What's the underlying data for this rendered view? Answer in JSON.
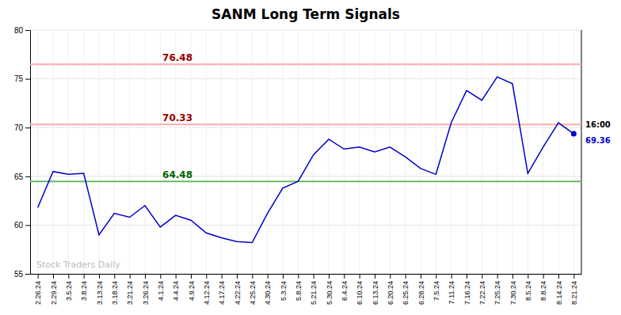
{
  "chart_data": {
    "type": "line",
    "title": "SANM Long Term Signals",
    "categories": [
      "2.26.24",
      "2.29.24",
      "3.5.24",
      "3.8.24",
      "3.13.24",
      "3.18.24",
      "3.21.24",
      "3.26.24",
      "4.1.24",
      "4.4.24",
      "4.9.24",
      "4.12.24",
      "4.17.24",
      "4.22.24",
      "4.25.24",
      "4.30.24",
      "5.3.24",
      "5.8.24",
      "5.21.24",
      "5.30.24",
      "6.4.24",
      "6.10.24",
      "6.13.24",
      "6.20.24",
      "6.25.24",
      "6.28.24",
      "7.5.24",
      "7.11.24",
      "7.16.24",
      "7.22.24",
      "7.25.24",
      "7.30.24",
      "8.5.24",
      "8.8.24",
      "8.14.24",
      "8.21.24"
    ],
    "values": [
      61.8,
      65.5,
      65.2,
      65.3,
      59.0,
      61.2,
      60.8,
      62.0,
      59.8,
      61.0,
      60.5,
      59.2,
      58.7,
      58.3,
      58.2,
      61.2,
      63.8,
      64.48,
      67.2,
      68.8,
      67.8,
      68.0,
      67.5,
      68.0,
      67.0,
      65.8,
      65.2,
      70.5,
      73.8,
      72.8,
      75.2,
      74.5,
      65.3,
      68.0,
      70.5,
      69.36
    ],
    "color": "#0000CC",
    "hlines": [
      {
        "value": 76.48,
        "color": "#FFAAAA",
        "label_color": "#990000"
      },
      {
        "value": 70.33,
        "color": "#FFAAAA",
        "label_color": "#990000"
      },
      {
        "value": 64.48,
        "color": "#66BB66",
        "label_color": "#006600"
      }
    ],
    "end_label": "16:00",
    "watermark": "Stock Traders Daily",
    "ylim": [
      55,
      80
    ],
    "yticks": [
      55,
      60,
      65,
      70,
      75,
      80
    ],
    "grid": true
  }
}
